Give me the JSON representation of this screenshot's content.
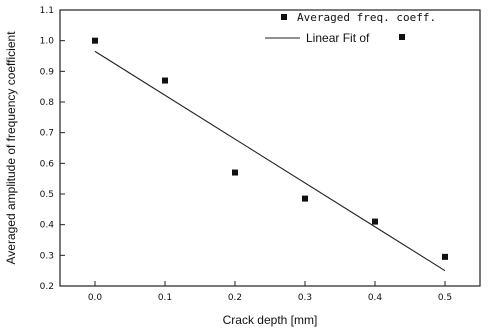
{
  "chart_data": {
    "type": "scatter",
    "xlabel": "Crack depth [mm]",
    "ylabel": "Averaged amplitude of frequency coefficient",
    "xlim": [
      -0.05,
      0.55
    ],
    "ylim": [
      0.2,
      1.1
    ],
    "x_ticks": [
      "0.0",
      "0.1",
      "0.2",
      "0.3",
      "0.4",
      "0.5"
    ],
    "y_ticks": [
      "0.2",
      "0.3",
      "0.4",
      "0.5",
      "0.6",
      "0.7",
      "0.8",
      "0.9",
      "1.0",
      "1.1"
    ],
    "series": [
      {
        "name": "Averaged freq. coeff.",
        "kind": "points",
        "marker": "square",
        "x": [
          0.0,
          0.1,
          0.2,
          0.3,
          0.4,
          0.5
        ],
        "y": [
          1.0,
          0.87,
          0.57,
          0.485,
          0.41,
          0.295
        ]
      },
      {
        "name": "Linear Fit of",
        "kind": "line",
        "x": [
          0.0,
          0.5
        ],
        "y": [
          0.965,
          0.25
        ]
      }
    ],
    "legend": {
      "position": "top-right",
      "entries": [
        "Averaged freq. coeff.",
        "Linear Fit of"
      ]
    },
    "grid": false,
    "colors": {
      "points": "#111111",
      "line": "#222222"
    }
  }
}
